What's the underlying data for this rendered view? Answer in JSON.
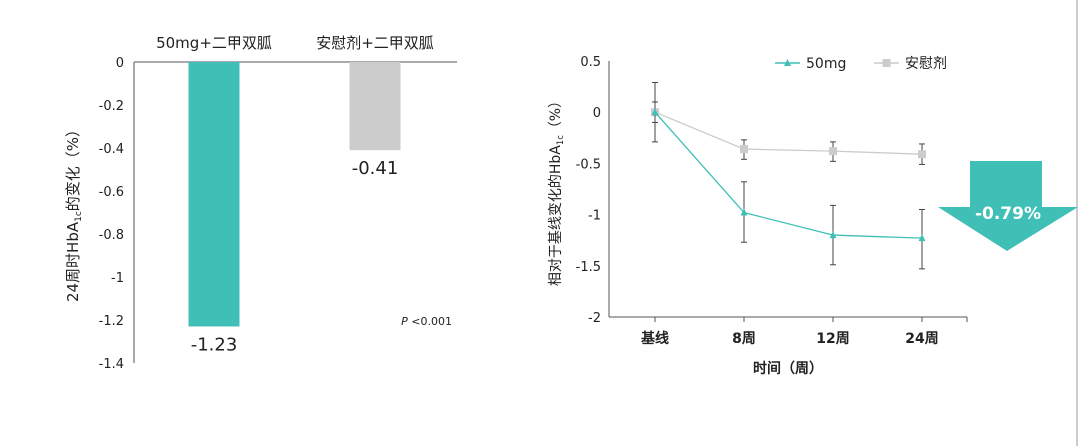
{
  "chart_data": [
    {
      "type": "bar",
      "categories": [
        "50mg+二甲双胍",
        "安慰剂+二甲双胍"
      ],
      "values": [
        -1.23,
        -0.41
      ],
      "data_labels": [
        "-1.23",
        "-0.41"
      ],
      "ylabel": "24周时HbA1c的变化（%）",
      "ylabel_parts": {
        "pre": "24周时HbA",
        "sub": "1c",
        "post": "的变化（%）"
      },
      "ylim": [
        -1.4,
        0
      ],
      "yticks": [
        "0",
        "-0.2",
        "-0.4",
        "-0.6",
        "-0.8",
        "-1",
        "-1.2",
        "-1.4"
      ],
      "annotation": {
        "p_label": "P",
        "p_value": "<0.001"
      },
      "colors": [
        "#40bfb6",
        "#cccccc"
      ],
      "grid": false
    },
    {
      "type": "line",
      "categories": [
        "基线",
        "8周",
        "12周",
        "24周"
      ],
      "xlabel": "时间（周）",
      "ylabel": "相对于基线变化的HbA1c（%）",
      "ylabel_parts": {
        "pre": "相对于基线变化的HbA",
        "sub": "1c",
        "post": "（%）"
      },
      "ylim": [
        -2,
        0.5
      ],
      "yticks": [
        "0.5",
        "0",
        "-0.5",
        "-1",
        "-1.5",
        "-2"
      ],
      "legend_position": "top-right",
      "grid": false,
      "series": [
        {
          "name": "50mg",
          "marker": "triangle",
          "color": "#40bfb6",
          "values": [
            0,
            -0.98,
            -1.2,
            -1.23
          ],
          "error_upper": [
            0.29,
            -0.68,
            -0.91,
            -0.95
          ],
          "error_lower": [
            -0.29,
            -1.27,
            -1.49,
            -1.53
          ]
        },
        {
          "name": "安慰剂",
          "marker": "square",
          "color": "#cccccc",
          "values": [
            0,
            -0.36,
            -0.38,
            -0.41
          ],
          "error_upper": [
            0.1,
            -0.27,
            -0.29,
            -0.31
          ],
          "error_lower": [
            -0.1,
            -0.46,
            -0.48,
            -0.51
          ]
        }
      ],
      "annotation": {
        "label": "-0.79%",
        "shape": "down-arrow",
        "color": "#40bfb6"
      }
    }
  ]
}
